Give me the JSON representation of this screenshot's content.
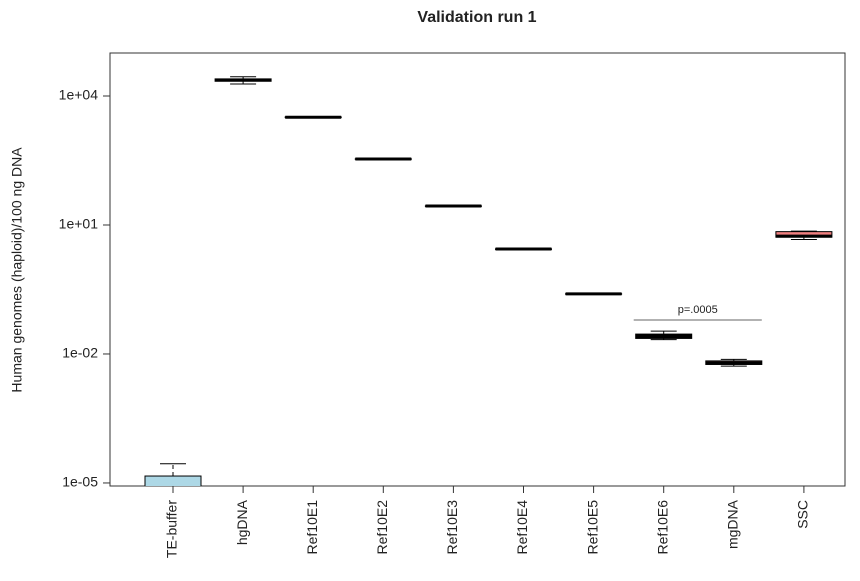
{
  "chart_data": {
    "type": "box",
    "title": "Validation run 1",
    "y_label": "Human genomes (haploid)/100 ng DNA",
    "categories": [
      "TE-buffer",
      "hgDNA",
      "Ref10E1",
      "Ref10E2",
      "Ref10E3",
      "Ref10E4",
      "Ref10E5",
      "Ref10E6",
      "mgDNA",
      "SSC"
    ],
    "boxes": [
      {
        "min": 5e-06,
        "q1": 5e-06,
        "median": 5e-06,
        "q3": 1.45e-05,
        "max": 2.8e-05
      },
      {
        "min": 19000,
        "q1": 22000,
        "median": 23500,
        "q3": 25000,
        "max": 28000
      },
      {
        "min": 3100,
        "q1": 3150,
        "median": 3200,
        "q3": 3250,
        "max": 3300
      },
      {
        "min": 335,
        "q1": 340,
        "median": 343,
        "q3": 346,
        "max": 350
      },
      {
        "min": 27,
        "q1": 27.4,
        "median": 27.6,
        "q3": 27.8,
        "max": 28.2
      },
      {
        "min": 2.7,
        "q1": 2.74,
        "median": 2.76,
        "q3": 2.78,
        "max": 2.82
      },
      {
        "min": 0.245,
        "q1": 0.248,
        "median": 0.25,
        "q3": 0.252,
        "max": 0.255
      },
      {
        "min": 0.0215,
        "q1": 0.023,
        "median": 0.026,
        "q3": 0.029,
        "max": 0.034
      },
      {
        "min": 0.0052,
        "q1": 0.0057,
        "median": 0.0062,
        "q3": 0.0069,
        "max": 0.0075
      },
      {
        "min": 4.6,
        "q1": 5.2,
        "median": 5.5,
        "q3": 7.0,
        "max": 7.2
      }
    ],
    "box_colors": [
      "#add8e6",
      "#000000",
      "#000000",
      "#000000",
      "#000000",
      "#000000",
      "#000000",
      "#000000",
      "#f08080",
      "#f08080"
    ],
    "log_scale": true,
    "ylim": [
      8.5e-06,
      100000
    ],
    "yticks": [
      {
        "value": 1e-05,
        "label": "1e-05"
      },
      {
        "value": 0.01,
        "label": "1e-02"
      },
      {
        "value": 10,
        "label": "1e+01"
      },
      {
        "value": 10000,
        "label": "1e+04"
      }
    ],
    "annotation": "p=.0005"
  }
}
